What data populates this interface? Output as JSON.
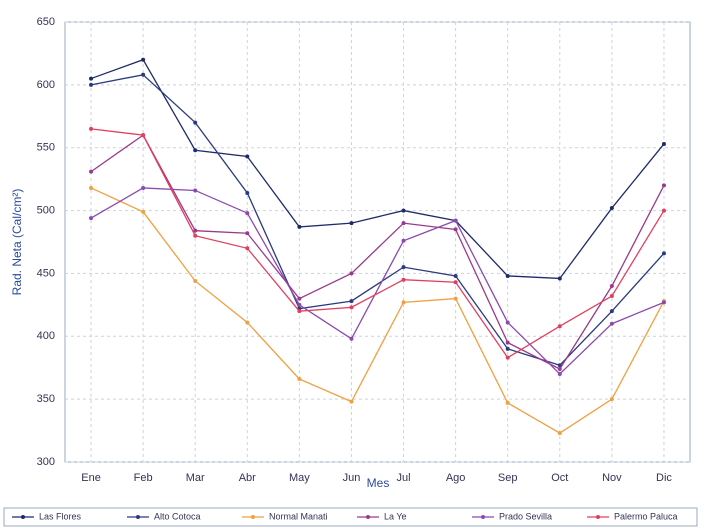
{
  "chart_data": {
    "type": "line",
    "y_label": "Rad. Neta (Cal/cm²)",
    "x_label": "Mes",
    "categories": [
      "Ene",
      "Feb",
      "Mar",
      "Abr",
      "May",
      "Jun",
      "Jul",
      "Ago",
      "Sep",
      "Oct",
      "Nov",
      "Dic"
    ],
    "ylim": [
      300,
      650
    ],
    "yticks": [
      300,
      350,
      400,
      450,
      500,
      550,
      600,
      650
    ],
    "grid": true,
    "legend": "bottom",
    "series": [
      {
        "name": "Las Flores",
        "color": "#1f2a6b",
        "values": [
          605,
          620,
          548,
          543,
          487,
          490,
          500,
          492,
          448,
          446,
          502,
          553
        ]
      },
      {
        "name": "Alto Cotoca",
        "color": "#2c3a80",
        "values": [
          600,
          608,
          570,
          514,
          422,
          428,
          455,
          448,
          390,
          377,
          420,
          466
        ]
      },
      {
        "name": "Normal Manati",
        "color": "#f0a040",
        "values": [
          518,
          499,
          444,
          411,
          366,
          348,
          427,
          430,
          347,
          323,
          350,
          428
        ]
      },
      {
        "name": "La Ye",
        "color": "#9a3a8c",
        "values": [
          531,
          560,
          484,
          482,
          430,
          450,
          490,
          485,
          395,
          374,
          440,
          520
        ]
      },
      {
        "name": "Prado Sevilla",
        "color": "#8a4ab0",
        "values": [
          494,
          518,
          516,
          498,
          425,
          398,
          476,
          492,
          411,
          370,
          410,
          427
        ]
      },
      {
        "name": "Palermo Paluca",
        "color": "#e04060",
        "values": [
          565,
          560,
          480,
          470,
          420,
          423,
          445,
          443,
          383,
          408,
          432,
          500
        ]
      }
    ]
  }
}
